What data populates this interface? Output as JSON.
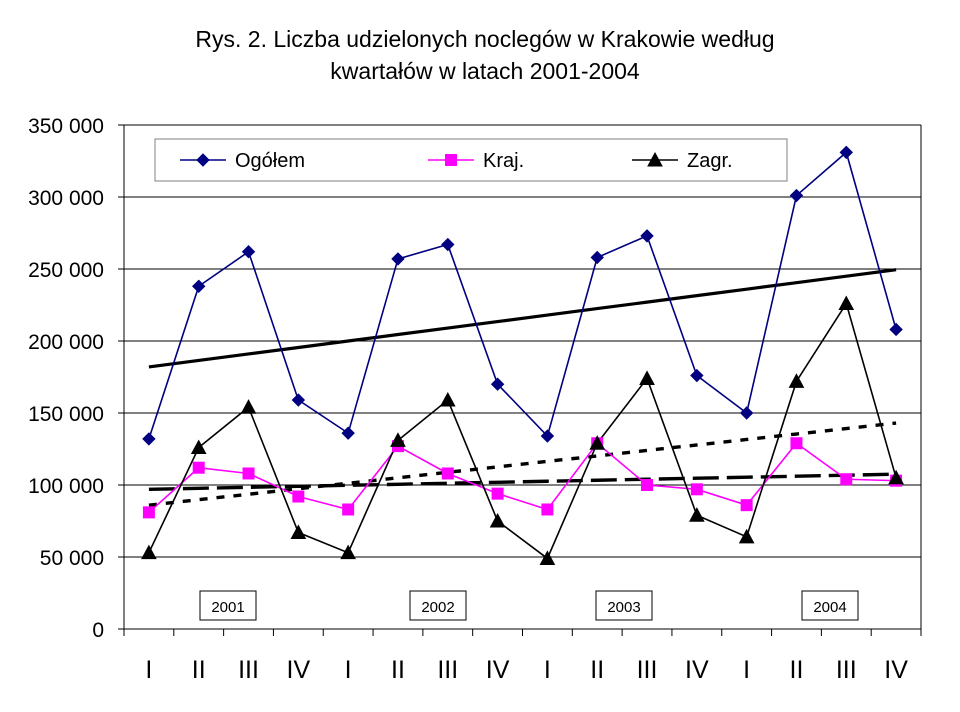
{
  "chart_data": {
    "type": "line",
    "title_line1": "Rys. 2. Liczba udzielonych noclegów w Krakowie według",
    "title_line2": "kwartałów w latach 2001-2004",
    "ylim": [
      0,
      350000
    ],
    "yticks": [
      "0",
      "50 000",
      "100 000",
      "150 000",
      "200 000",
      "250 000",
      "300 000",
      "350 000"
    ],
    "grid": true,
    "legend_position": "top",
    "categories": [
      "I",
      "II",
      "III",
      "IV",
      "I",
      "II",
      "III",
      "IV",
      "I",
      "II",
      "III",
      "IV",
      "I",
      "II",
      "III",
      "IV"
    ],
    "year_labels": [
      "2001",
      "2002",
      "2003",
      "2004"
    ],
    "series": [
      {
        "name": "Ogółem",
        "color": "#000080",
        "marker": "diamond",
        "values": [
          132000,
          238000,
          262000,
          159000,
          136000,
          257000,
          267000,
          170000,
          134000,
          258000,
          273000,
          176000,
          150000,
          301000,
          331000,
          208000
        ]
      },
      {
        "name": "Kraj.",
        "color": "#ff00ff",
        "marker": "square",
        "values": [
          81000,
          112000,
          108000,
          92000,
          83000,
          127000,
          108000,
          94000,
          83000,
          129000,
          100000,
          97000,
          86000,
          129000,
          104000,
          103000
        ]
      },
      {
        "name": "Zagr.",
        "color": "#000000",
        "marker": "triangle",
        "values": [
          53000,
          126000,
          154000,
          67000,
          53000,
          131000,
          159000,
          75000,
          49000,
          129000,
          174000,
          79000,
          64000,
          172000,
          226000,
          105000
        ]
      }
    ],
    "trendlines": [
      {
        "of": "Ogółem",
        "style": "solid",
        "values": [
          182000,
          186500,
          191000,
          195500,
          200000,
          204500,
          209000,
          213500,
          218000,
          222500,
          227000,
          231500,
          236000,
          240500,
          245000,
          249500
        ]
      },
      {
        "of": "Zagr.",
        "style": "dotted",
        "values": [
          86000,
          89800,
          93600,
          97400,
          101200,
          105000,
          108800,
          112600,
          116400,
          120200,
          124000,
          127800,
          131600,
          135400,
          139200,
          143000
        ]
      },
      {
        "of": "Kraj.",
        "style": "dashed",
        "values": [
          97000,
          97700,
          98400,
          99100,
          99800,
          100500,
          101200,
          101900,
          102600,
          103300,
          104000,
          104700,
          105400,
          106100,
          106800,
          107500
        ]
      }
    ]
  }
}
